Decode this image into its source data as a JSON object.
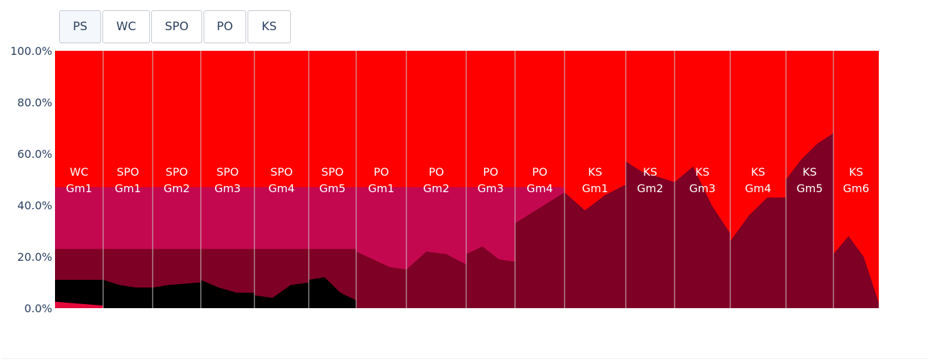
{
  "buttons": [
    {
      "label": "PS",
      "active": true
    },
    {
      "label": "WC",
      "active": false
    },
    {
      "label": "SPO",
      "active": false
    },
    {
      "label": "PO",
      "active": false
    },
    {
      "label": "KS",
      "active": false
    }
  ],
  "chart_data": {
    "type": "area",
    "stacking": "percent",
    "ylim": [
      0,
      100
    ],
    "y_ticks": [
      "0.0%",
      "20.0%",
      "40.0%",
      "60.0%",
      "80.0%",
      "100.0%"
    ],
    "colors": {
      "top": "#ff0000",
      "upper_middle": "#c4084f",
      "lower_middle": "#7f0025",
      "lowest": "#000000",
      "bottom_sliver": "#e60a3c",
      "separator": "#c8c8c8",
      "label": "#ffffff"
    },
    "games": [
      {
        "round": "WC",
        "game": "Gm1",
        "lines": [
          "WC",
          "Gm1"
        ],
        "values": {
          "lowest": [
            11,
            11,
            11,
            11
          ],
          "lower_middle": [
            23,
            23,
            23,
            23
          ],
          "upper_middle": [
            47,
            47,
            47,
            47
          ],
          "bottom_sliver": [
            2.5,
            2,
            1.5,
            1
          ]
        }
      },
      {
        "round": "SPO",
        "game": "Gm1",
        "lines": [
          "SPO",
          "Gm1"
        ],
        "values": {
          "lowest": [
            11,
            9,
            8,
            8
          ],
          "lower_middle": [
            23,
            23,
            23,
            23
          ],
          "upper_middle": [
            47,
            47,
            47,
            47
          ]
        }
      },
      {
        "round": "SPO",
        "game": "Gm2",
        "lines": [
          "SPO",
          "Gm2"
        ],
        "values": {
          "lowest": [
            8,
            9,
            9.5,
            10
          ],
          "lower_middle": [
            23,
            23,
            23,
            23
          ],
          "upper_middle": [
            47,
            47,
            47,
            47
          ]
        }
      },
      {
        "round": "SPO",
        "game": "Gm3",
        "lines": [
          "SPO",
          "Gm3"
        ],
        "values": {
          "lowest": [
            11,
            8,
            6,
            6
          ],
          "lower_middle": [
            23,
            23,
            23,
            23
          ],
          "upper_middle": [
            47,
            47,
            47,
            47
          ]
        }
      },
      {
        "round": "SPO",
        "game": "Gm4",
        "lines": [
          "SPO",
          "Gm4"
        ],
        "values": {
          "lowest": [
            5,
            4,
            9,
            10
          ],
          "lower_middle": [
            23,
            23,
            23,
            23
          ],
          "upper_middle": [
            47,
            47,
            47,
            47
          ]
        }
      },
      {
        "round": "SPO",
        "game": "Gm5",
        "lines": [
          "SPO",
          "Gm5"
        ],
        "values": {
          "lowest": [
            11,
            12,
            6,
            3
          ],
          "lower_middle": [
            23,
            23,
            23,
            23
          ],
          "upper_middle": [
            47,
            47,
            47,
            47
          ]
        }
      },
      {
        "round": "PO",
        "game": "Gm1",
        "lines": [
          "PO",
          "Gm1"
        ],
        "values": {
          "lower_middle": [
            22,
            19,
            16,
            15
          ],
          "upper_middle": [
            47,
            47,
            47,
            47
          ]
        }
      },
      {
        "round": "PO",
        "game": "Gm2",
        "lines": [
          "PO",
          "Gm2"
        ],
        "values": {
          "lower_middle": [
            15,
            22,
            21,
            17
          ],
          "upper_middle": [
            47,
            47,
            47,
            47
          ]
        }
      },
      {
        "round": "PO",
        "game": "Gm3",
        "lines": [
          "PO",
          "Gm3"
        ],
        "values": {
          "lower_middle": [
            21,
            24,
            19,
            18
          ],
          "upper_middle": [
            47,
            47,
            47,
            47
          ]
        }
      },
      {
        "round": "PO",
        "game": "Gm4",
        "lines": [
          "PO",
          "Gm4"
        ],
        "values": {
          "lower_middle": [
            33,
            37,
            41,
            45
          ],
          "upper_middle": [
            47,
            47,
            47,
            47
          ]
        }
      },
      {
        "round": "KS",
        "game": "Gm1",
        "lines": [
          "KS",
          "Gm1"
        ],
        "values": {
          "lower_middle": [
            45,
            38,
            44,
            48
          ]
        }
      },
      {
        "round": "KS",
        "game": "Gm2",
        "lines": [
          "KS",
          "Gm2"
        ],
        "values": {
          "lower_middle": [
            57,
            53,
            51,
            49
          ]
        }
      },
      {
        "round": "KS",
        "game": "Gm3",
        "lines": [
          "KS",
          "Gm3"
        ],
        "values": {
          "lower_middle": [
            49,
            55,
            40,
            29
          ]
        }
      },
      {
        "round": "KS",
        "game": "Gm4",
        "lines": [
          "KS",
          "Gm4"
        ],
        "values": {
          "lower_middle": [
            26,
            36,
            43,
            43
          ]
        }
      },
      {
        "round": "KS",
        "game": "Gm5",
        "lines": [
          "KS",
          "Gm5"
        ],
        "values": {
          "lower_middle": [
            50,
            58,
            64,
            68
          ]
        }
      },
      {
        "round": "KS",
        "game": "Gm6",
        "lines": [
          "KS",
          "Gm6"
        ],
        "values": {
          "lower_middle": [
            21,
            28,
            20,
            2
          ]
        }
      }
    ]
  }
}
